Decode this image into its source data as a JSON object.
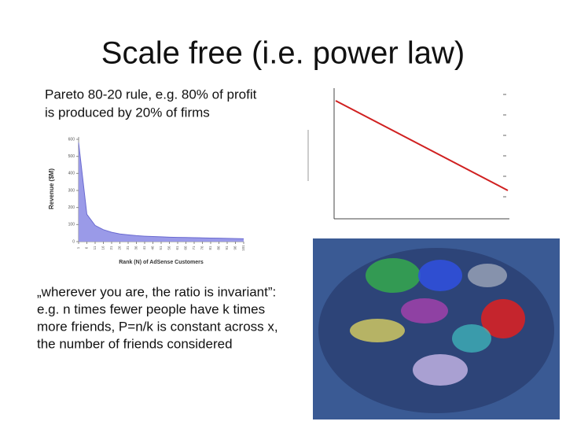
{
  "title": "Scale free (i.e. power law)",
  "intro_lines": [
    "Pareto 80-20 rule, e.g. 80% of profit",
    "is produced by 20% of firms"
  ],
  "quote_lines": [
    "„wherever you are, the ratio is invariant”:",
    "e.g. n times fewer people have k times",
    "more friends, P=n/k is constant across x,",
    "the number of friends considered"
  ],
  "revenue_chart": {
    "type": "area",
    "y_label": "Revenue ($M)",
    "x_label": "Rank (N) of AdSense Customers",
    "x": [
      1,
      6,
      11,
      16,
      21,
      26,
      31,
      36,
      41,
      46,
      51,
      56,
      61,
      66,
      71,
      76,
      81,
      86,
      91,
      96,
      101
    ],
    "values": [
      580,
      160,
      95,
      70,
      55,
      45,
      40,
      35,
      32,
      30,
      28,
      26,
      25,
      24,
      23,
      22,
      21,
      20,
      19,
      18,
      17
    ],
    "xlim": [
      1,
      101
    ],
    "ylim": [
      0,
      600
    ],
    "xticks": [
      1,
      6,
      11,
      16,
      21,
      26,
      31,
      36,
      41,
      46,
      51,
      56,
      61,
      66,
      71,
      76,
      81,
      86,
      91,
      96,
      101
    ],
    "yticks": [
      0,
      100,
      200,
      300,
      400,
      500,
      600
    ],
    "color": "#9a9ae8",
    "line_color": "#6a6ad0"
  }
}
